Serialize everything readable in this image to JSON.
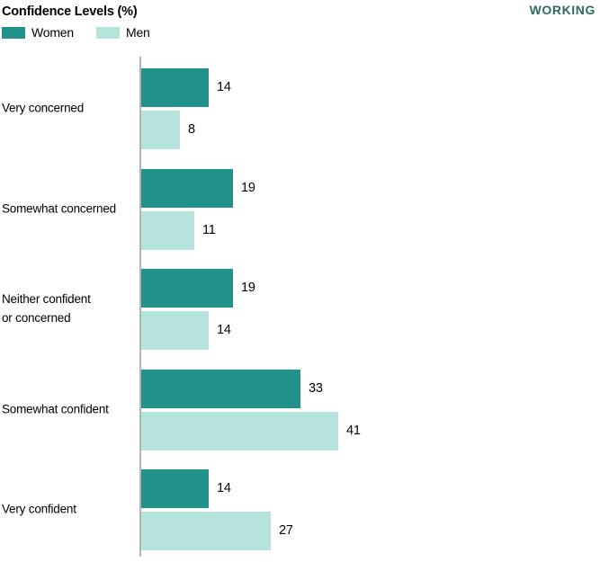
{
  "header": {
    "title": "Confidence Levels (%)",
    "brand": "WORKING",
    "brand_color": "#2d6a63"
  },
  "legend": {
    "items": [
      {
        "label": "Women",
        "color": "#21928a"
      },
      {
        "label": "Men",
        "color": "#b5e4dc"
      }
    ]
  },
  "chart_data": {
    "type": "bar",
    "orientation": "horizontal",
    "title": "Confidence Levels (%)",
    "unit": "%",
    "xlabel": "",
    "ylabel": "",
    "xlim": [
      0,
      45
    ],
    "grid": false,
    "legend_position": "top-left",
    "value_labels": true,
    "axis_line_color": "#b3b3b3",
    "categories": [
      "Very concerned",
      "Somewhat concerned",
      "Neither confident or concerned",
      "Somewhat confident",
      "Very confident"
    ],
    "label_lines": [
      [
        "Very concerned"
      ],
      [
        "Somewhat concerned"
      ],
      [
        "Neither confident",
        "or concerned"
      ],
      [
        "Somewhat confident"
      ],
      [
        "Very confident"
      ]
    ],
    "series": [
      {
        "name": "Women",
        "color": "#21928a",
        "values": [
          14,
          19,
          19,
          33,
          14
        ]
      },
      {
        "name": "Men",
        "color": "#b5e4dc",
        "values": [
          8,
          11,
          14,
          41,
          27
        ]
      }
    ]
  }
}
